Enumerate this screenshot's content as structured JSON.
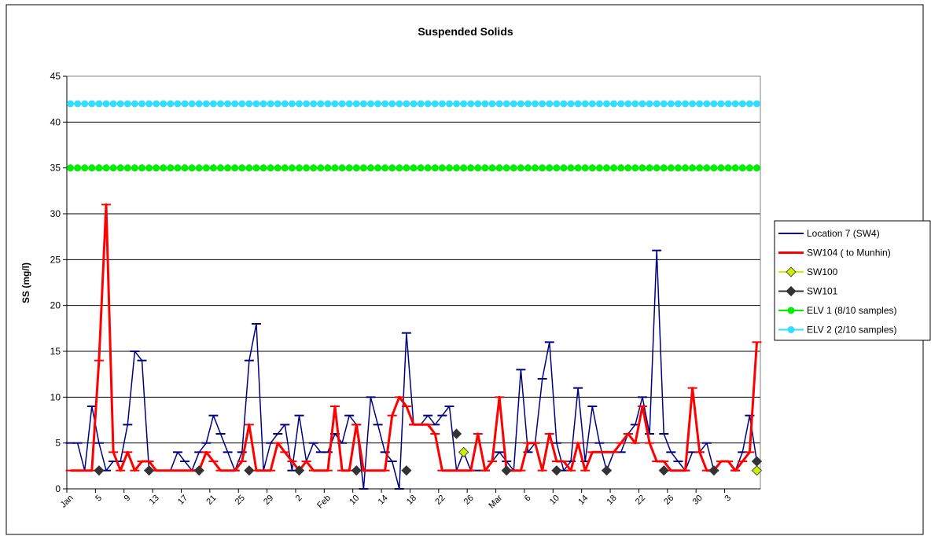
{
  "chart_data": {
    "type": "line",
    "title": "Suspended Solids",
    "y_label": "SS (mg/l)",
    "categories": [
      "Jan",
      null,
      null,
      null,
      "5",
      null,
      null,
      null,
      "9",
      null,
      null,
      null,
      "13",
      null,
      null,
      null,
      "17",
      null,
      null,
      null,
      "21",
      null,
      null,
      null,
      "25",
      null,
      null,
      null,
      "29",
      null,
      null,
      null,
      "2",
      null,
      null,
      null,
      "Feb",
      null,
      null,
      null,
      "10",
      null,
      null,
      null,
      "14",
      null,
      null,
      null,
      "18",
      null,
      null,
      null,
      "22",
      null,
      null,
      null,
      "26",
      null,
      null,
      null,
      "Mar",
      null,
      null,
      null,
      "6",
      null,
      null,
      null,
      "10",
      null,
      null,
      null,
      "14",
      null,
      null,
      null,
      "18",
      null,
      null,
      null,
      "22",
      null,
      null,
      null,
      "26",
      null,
      null,
      null,
      "30",
      null,
      null,
      null,
      "3",
      null,
      null,
      null,
      null
    ],
    "ylim": [
      0,
      45
    ],
    "yticks": [
      0,
      5,
      10,
      15,
      20,
      25,
      30,
      35,
      40,
      45
    ],
    "grid": true,
    "legend": "right",
    "series": [
      {
        "name": "Location 7 (SW4)",
        "color": "#000080",
        "marker": "dash",
        "values": [
          5,
          5,
          2,
          9,
          5,
          2,
          3,
          3,
          7,
          15,
          14,
          2,
          2,
          2,
          2,
          4,
          3,
          2,
          4,
          5,
          8,
          6,
          4,
          2,
          4,
          14,
          18,
          2,
          5,
          6,
          7,
          2,
          8,
          3,
          5,
          4,
          4,
          6,
          5,
          8,
          7,
          0,
          10,
          7,
          4,
          3,
          0,
          17,
          7,
          7,
          8,
          7,
          8,
          9,
          2,
          4,
          2,
          2,
          2,
          3,
          4,
          3,
          2,
          13,
          4,
          5,
          12,
          16,
          5,
          2,
          3,
          11,
          3,
          9,
          5,
          2,
          4,
          4,
          6,
          7,
          10,
          6,
          26,
          6,
          4,
          3,
          2,
          4,
          4,
          5,
          2,
          3,
          3,
          2,
          4,
          8,
          3
        ]
      },
      {
        "name": "SW104 ( to Munhin)",
        "color": "#ff0000",
        "marker": "dash",
        "values": [
          2,
          2,
          2,
          2,
          14,
          31,
          4,
          2,
          4,
          2,
          3,
          3,
          2,
          2,
          2,
          2,
          2,
          2,
          2,
          4,
          3,
          2,
          2,
          2,
          3,
          7,
          2,
          2,
          2,
          5,
          4,
          3,
          2,
          3,
          2,
          2,
          2,
          9,
          2,
          2,
          7,
          2,
          2,
          2,
          2,
          8,
          10,
          9,
          7,
          7,
          7,
          6,
          2,
          2,
          2,
          2,
          2,
          6,
          2,
          3,
          10,
          2,
          2,
          2,
          5,
          5,
          2,
          6,
          3,
          3,
          2,
          5,
          2,
          4,
          4,
          4,
          4,
          5,
          6,
          5,
          9,
          5,
          3,
          3,
          2,
          2,
          2,
          11,
          4,
          2,
          2,
          3,
          3,
          2,
          3,
          4,
          16
        ]
      },
      {
        "name": "SW100",
        "color": "#ccee00",
        "marker": "diamond",
        "values": [
          null,
          null,
          null,
          null,
          null,
          null,
          null,
          null,
          null,
          null,
          null,
          null,
          null,
          null,
          null,
          null,
          null,
          null,
          null,
          null,
          null,
          null,
          null,
          null,
          null,
          null,
          null,
          null,
          null,
          null,
          null,
          null,
          null,
          null,
          null,
          null,
          null,
          null,
          null,
          null,
          null,
          null,
          null,
          null,
          null,
          null,
          null,
          null,
          null,
          null,
          null,
          null,
          null,
          null,
          null,
          4,
          null,
          null,
          null,
          null,
          null,
          null,
          null,
          null,
          null,
          null,
          null,
          null,
          null,
          null,
          null,
          null,
          null,
          null,
          null,
          null,
          null,
          null,
          null,
          null,
          null,
          null,
          null,
          null,
          null,
          null,
          null,
          null,
          null,
          null,
          null,
          null,
          null,
          null,
          null,
          null,
          2
        ]
      },
      {
        "name": "SW101",
        "color": "#333333",
        "marker": "diamond",
        "values": [
          null,
          null,
          null,
          null,
          2,
          null,
          null,
          null,
          null,
          null,
          null,
          2,
          null,
          null,
          null,
          null,
          null,
          null,
          2,
          null,
          null,
          null,
          null,
          null,
          null,
          2,
          null,
          null,
          null,
          null,
          null,
          null,
          2,
          null,
          null,
          null,
          null,
          null,
          null,
          null,
          2,
          null,
          null,
          null,
          null,
          null,
          null,
          2,
          null,
          null,
          null,
          null,
          null,
          null,
          6,
          null,
          null,
          null,
          null,
          null,
          null,
          2,
          null,
          null,
          null,
          null,
          null,
          null,
          2,
          null,
          null,
          null,
          null,
          null,
          null,
          2,
          null,
          null,
          null,
          null,
          null,
          null,
          null,
          2,
          null,
          null,
          null,
          null,
          null,
          null,
          2,
          null,
          null,
          null,
          null,
          null,
          3
        ]
      },
      {
        "name": "ELV 1 (8/10 samples)",
        "color": "#00ee00",
        "marker": "circle",
        "values": [
          35,
          35,
          35,
          35,
          35,
          35,
          35,
          35,
          35,
          35,
          35,
          35,
          35,
          35,
          35,
          35,
          35,
          35,
          35,
          35,
          35,
          35,
          35,
          35,
          35,
          35,
          35,
          35,
          35,
          35,
          35,
          35,
          35,
          35,
          35,
          35,
          35,
          35,
          35,
          35,
          35,
          35,
          35,
          35,
          35,
          35,
          35,
          35,
          35,
          35,
          35,
          35,
          35,
          35,
          35,
          35,
          35,
          35,
          35,
          35,
          35,
          35,
          35,
          35,
          35,
          35,
          35,
          35,
          35,
          35,
          35,
          35,
          35,
          35,
          35,
          35,
          35,
          35,
          35,
          35,
          35,
          35,
          35,
          35,
          35,
          35,
          35,
          35,
          35,
          35,
          35,
          35,
          35,
          35,
          35,
          35,
          35
        ]
      },
      {
        "name": "ELV 2 (2/10 samples)",
        "color": "#33ddff",
        "marker": "circle",
        "values": [
          42,
          42,
          42,
          42,
          42,
          42,
          42,
          42,
          42,
          42,
          42,
          42,
          42,
          42,
          42,
          42,
          42,
          42,
          42,
          42,
          42,
          42,
          42,
          42,
          42,
          42,
          42,
          42,
          42,
          42,
          42,
          42,
          42,
          42,
          42,
          42,
          42,
          42,
          42,
          42,
          42,
          42,
          42,
          42,
          42,
          42,
          42,
          42,
          42,
          42,
          42,
          42,
          42,
          42,
          42,
          42,
          42,
          42,
          42,
          42,
          42,
          42,
          42,
          42,
          42,
          42,
          42,
          42,
          42,
          42,
          42,
          42,
          42,
          42,
          42,
          42,
          42,
          42,
          42,
          42,
          42,
          42,
          42,
          42,
          42,
          42,
          42,
          42,
          42,
          42,
          42,
          42,
          42,
          42,
          42,
          42,
          42
        ]
      }
    ]
  }
}
